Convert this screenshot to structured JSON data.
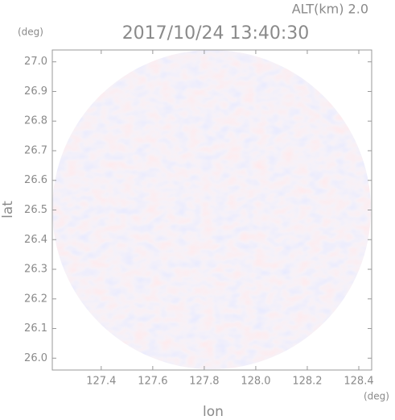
{
  "chart_data": {
    "type": "radar-ppi",
    "altitude_label": "ALT(km) 2.0",
    "title": "2017/10/24 13:40:30",
    "x_label": "lon",
    "y_label": "lat",
    "x_unit": "(deg)",
    "y_unit": "(deg)",
    "xlim": [
      127.21,
      128.45
    ],
    "xticks": [
      {
        "value": 127.4,
        "label": "127.4"
      },
      {
        "value": 127.6,
        "label": "127.6"
      },
      {
        "value": 127.8,
        "label": "127.8"
      },
      {
        "value": 128.0,
        "label": "128.0"
      },
      {
        "value": 128.2,
        "label": "128.2"
      },
      {
        "value": 128.4,
        "label": "128.4"
      }
    ],
    "ylim": [
      25.96,
      27.04
    ],
    "yticks": [
      {
        "value": 26.0,
        "label": "26.0"
      },
      {
        "value": 26.1,
        "label": "26.1"
      },
      {
        "value": 26.2,
        "label": "26.2"
      },
      {
        "value": 26.3,
        "label": "26.3"
      },
      {
        "value": 26.4,
        "label": "26.4"
      },
      {
        "value": 26.5,
        "label": "26.5"
      },
      {
        "value": 26.6,
        "label": "26.6"
      },
      {
        "value": 26.7,
        "label": "26.7"
      },
      {
        "value": 26.8,
        "label": "26.8"
      },
      {
        "value": 26.9,
        "label": "26.9"
      },
      {
        "value": 27.0,
        "label": "27.0"
      }
    ]
  }
}
